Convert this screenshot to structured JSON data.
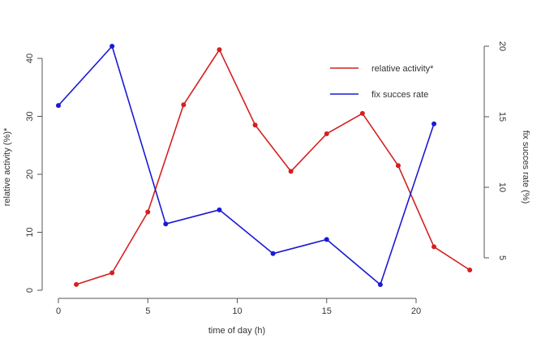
{
  "chart_data": {
    "type": "line",
    "xlabel": "time of day (h)",
    "ylabel_left": "relative activity (%)*",
    "ylabel_right": "fix succes rate (%)",
    "x_ticks": [
      0,
      5,
      10,
      15,
      20
    ],
    "y_left_ticks": [
      0,
      10,
      20,
      30,
      40
    ],
    "y_right_ticks": [
      5,
      10,
      15,
      20
    ],
    "xlim": [
      0,
      23
    ],
    "ylim_left": [
      0,
      41.5
    ],
    "ylim_right": [
      3,
      20
    ],
    "grid": false,
    "legend_position": "top-right",
    "series": [
      {
        "name": "relative activity*",
        "axis": "left",
        "color": "#d42020",
        "x": [
          1,
          3,
          5,
          7,
          9,
          11,
          13,
          15,
          17,
          19,
          21,
          23
        ],
        "y": [
          1,
          3,
          13.5,
          32,
          41.5,
          28.5,
          20.5,
          27,
          30.5,
          21.5,
          7.5,
          3.5
        ]
      },
      {
        "name": "fix succes rate",
        "axis": "right",
        "color": "#1a1ad4",
        "x": [
          0,
          3,
          6,
          9,
          12,
          15,
          18,
          21
        ],
        "y": [
          15.8,
          20,
          7.4,
          8.4,
          5.3,
          6.3,
          3.1,
          14.5
        ]
      }
    ]
  }
}
